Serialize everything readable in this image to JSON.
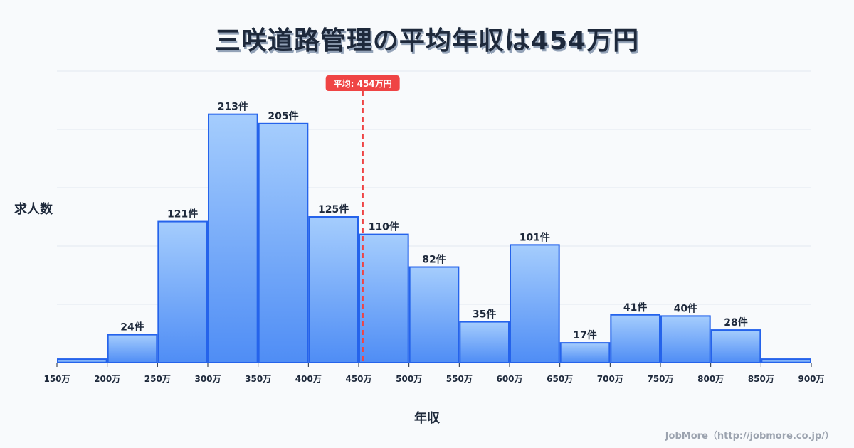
{
  "title": "三咲道路管理の平均年収は454万円",
  "axis": {
    "ylabel": "求人数",
    "xlabel": "年収"
  },
  "mean_marker": {
    "label": "平均: 454万円",
    "value": 454,
    "color": "#ef4444"
  },
  "footer": "JobMore（http://jobmore.co.jp/）",
  "colors": {
    "bar_top": "#a5cdfd",
    "bar_bottom": "#4f8df5",
    "bar_stroke": "#2563eb",
    "grid": "#e2e8f0",
    "text": "#1e293b"
  },
  "chart_data": {
    "type": "bar",
    "title": "三咲道路管理の平均年収は454万円",
    "xlabel": "年収",
    "ylabel": "求人数",
    "bin_edges": [
      150,
      200,
      250,
      300,
      350,
      400,
      450,
      500,
      550,
      600,
      650,
      700,
      750,
      800,
      850,
      900
    ],
    "tick_labels": [
      "150万",
      "200万",
      "250万",
      "300万",
      "350万",
      "400万",
      "450万",
      "500万",
      "550万",
      "600万",
      "650万",
      "700万",
      "750万",
      "800万",
      "850万",
      "900万"
    ],
    "categories": [
      "150-200万",
      "200-250万",
      "250-300万",
      "300-350万",
      "350-400万",
      "400-450万",
      "450-500万",
      "500-550万",
      "550-600万",
      "600-650万",
      "650-700万",
      "700-750万",
      "750-800万",
      "800-850万",
      "850-900万"
    ],
    "values": [
      3,
      24,
      121,
      213,
      205,
      125,
      110,
      82,
      35,
      101,
      17,
      41,
      40,
      28,
      3
    ],
    "value_labels": [
      "",
      "24件",
      "121件",
      "213件",
      "205件",
      "125件",
      "110件",
      "82件",
      "35件",
      "101件",
      "17件",
      "41件",
      "40件",
      "28件",
      ""
    ],
    "ylim": [
      0,
      250
    ],
    "grid": true,
    "mean": 454,
    "mean_label": "平均: 454万円"
  }
}
